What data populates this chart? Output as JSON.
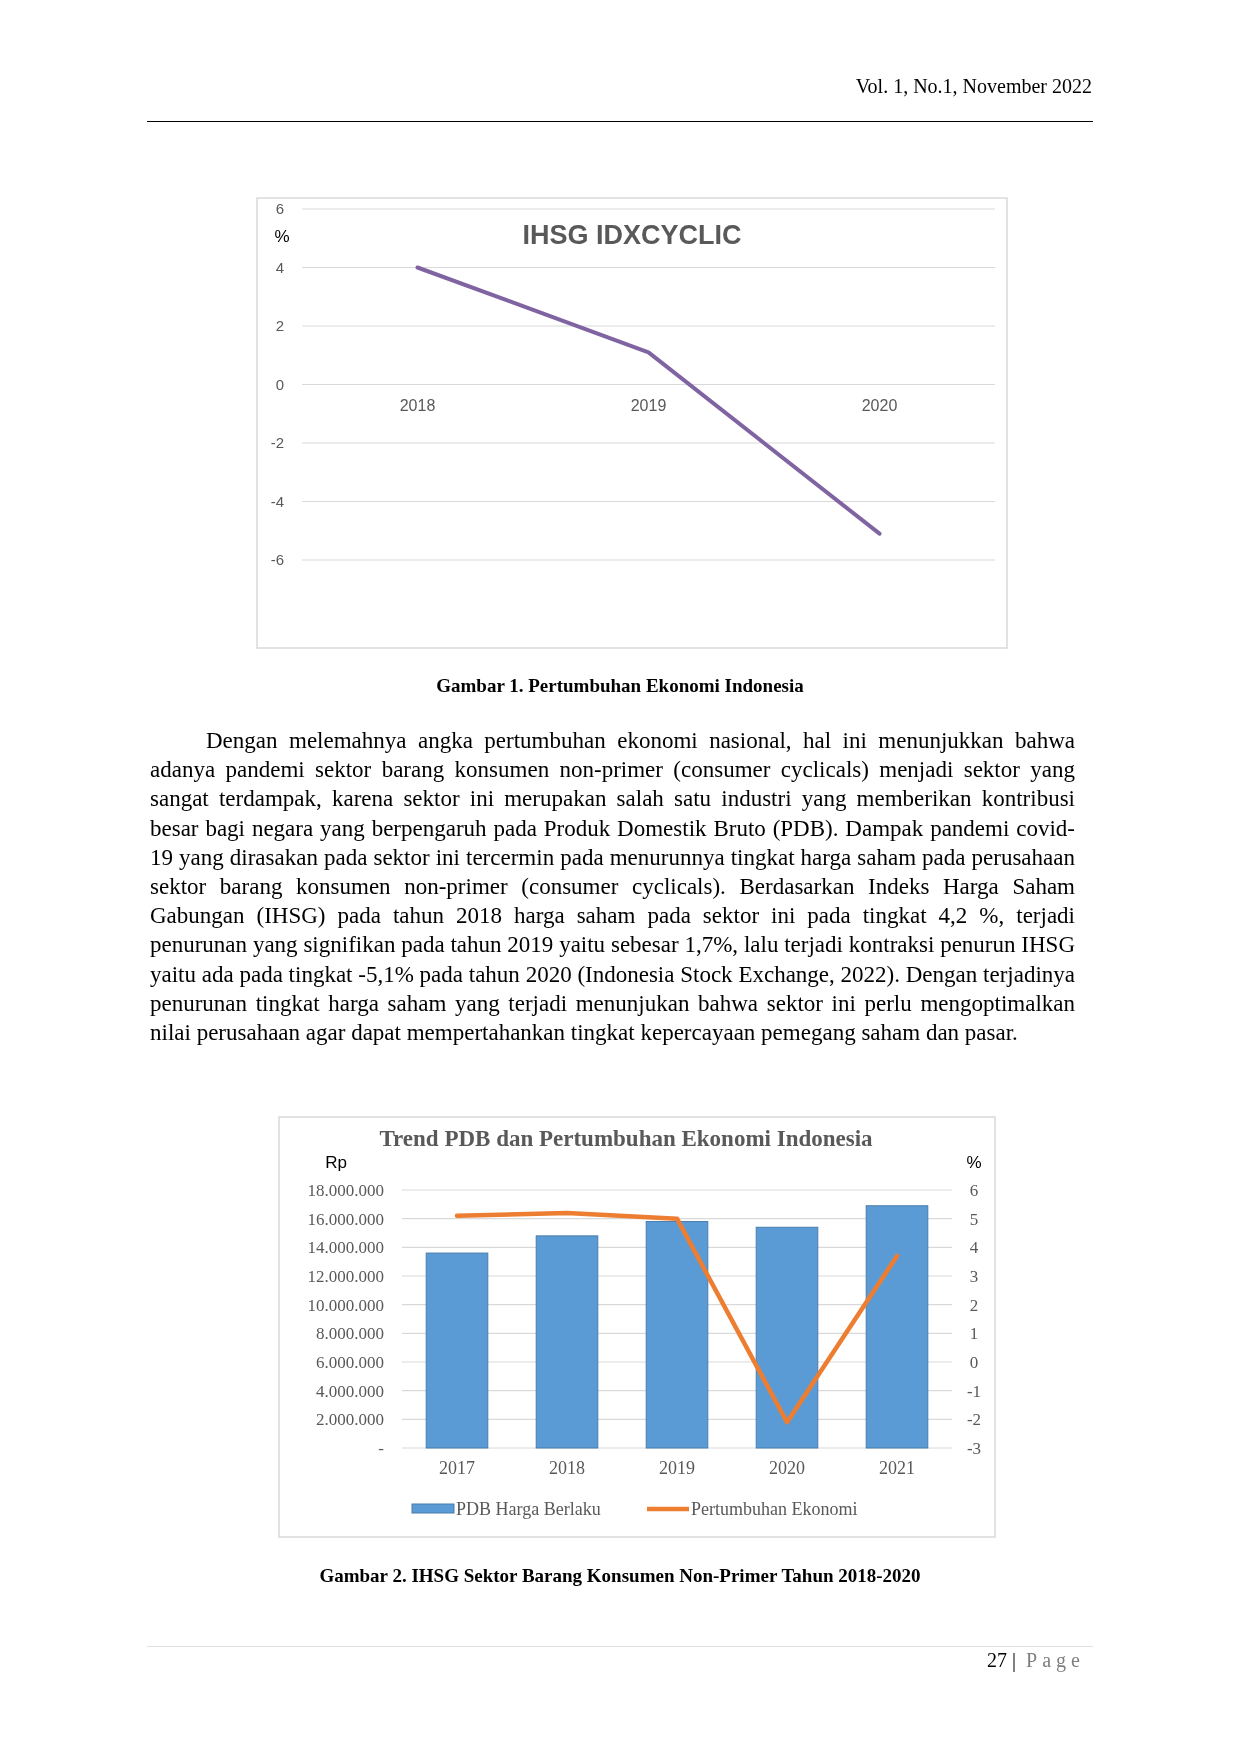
{
  "chart_data": [
    {
      "type": "line",
      "title": "IHSG IDXCYCLIC",
      "ylabel": "%",
      "categories": [
        "2018",
        "2019",
        "2020"
      ],
      "series": [
        {
          "color": "#8064a2",
          "values": [
            4.0,
            1.1,
            -5.1
          ]
        }
      ],
      "ylim": [
        -6,
        6
      ],
      "yticks": [
        -6,
        -4,
        -2,
        0,
        2,
        4,
        6
      ],
      "grid": true,
      "annotations": [
        "Vol. 1, No.1, November 2022",
        "Gambar 1. Pertumbuhan Ekonomi Indonesia",
        "Dengan melemahnya angka pertumbuhan ekonomi nasional, hal ini menunjukkan bahwa adanya pandemi sektor barang konsumen non-primer (consumer cyclicals) menjadi sektor yang sangat terdampak, karena sektor ini merupakan salah satu industri yang memberikan kontribusi besar bagi negara yang berpengaruh pada Produk Domestik Bruto (PDB). Dampak pandemi covid-19 yang dirasakan pada sektor ini tercermin pada menurunnya tingkat harga saham pada perusahaan sektor barang konsumen non-primer (consumer cyclicals). Berdasarkan Indeks Harga Saham Gabungan (IHSG) pada tahun 2018 harga saham pada sektor ini pada tingkat 4,2 %, terjadi penurunan yang signifikan pada tahun 2019 yaitu sebesar 1,7%, lalu terjadi kontraksi penurun IHSG yaitu ada pada tingkat -5,1% pada tahun 2020 (Indonesia Stock Exchange, 2022). Dengan terjadinya penurunan tingkat harga saham yang terjadi menunjukan bahwa sektor ini perlu mengoptimalkan nilai perusahaan agar dapat mempertahankan tingkat kepercayaan pemegang saham dan pasar."
      ]
    },
    {
      "type": "bar",
      "title": "Trend PDB dan Pertumbuhan Ekonomi Indonesia",
      "ylabel": "Rp",
      "y2label": "%",
      "categories": [
        "2017",
        "2018",
        "2019",
        "2020",
        "2021"
      ],
      "series": [
        {
          "name": "PDB Harga Berlaku",
          "type": "bar",
          "color": "#5b9bd5",
          "values": [
            13600000,
            14800000,
            15800000,
            15400000,
            16900000
          ]
        },
        {
          "name": "Pertumbuhan Ekonomi",
          "type": "line",
          "axis": "y2",
          "color": "#ed7d31",
          "values": [
            5.1,
            5.2,
            5.0,
            -2.1,
            3.7
          ]
        }
      ],
      "ylim": [
        0,
        18000000
      ],
      "yticks": [
        {
          "value": 0,
          "label": "-"
        },
        {
          "value": 2000000,
          "label": "2.000.000"
        },
        {
          "value": 4000000,
          "label": "4.000.000"
        },
        {
          "value": 6000000,
          "label": "6.000.000"
        },
        {
          "value": 8000000,
          "label": "8.000.000"
        },
        {
          "value": 10000000,
          "label": "10.000.000"
        },
        {
          "value": 12000000,
          "label": "12.000.000"
        },
        {
          "value": 14000000,
          "label": "14.000.000"
        },
        {
          "value": 16000000,
          "label": "16.000.000"
        },
        {
          "value": 18000000,
          "label": "18.000.000"
        }
      ],
      "y2lim": [
        -3,
        6
      ],
      "y2ticks": [
        -3,
        -2,
        -1,
        0,
        1,
        2,
        3,
        4,
        5,
        6
      ],
      "grid": true,
      "legend": "bottom",
      "annotations": [
        "Gambar 2. IHSG Sektor Barang Konsumen Non-Primer Tahun 2018-2020",
        "27 | Page"
      ]
    }
  ]
}
